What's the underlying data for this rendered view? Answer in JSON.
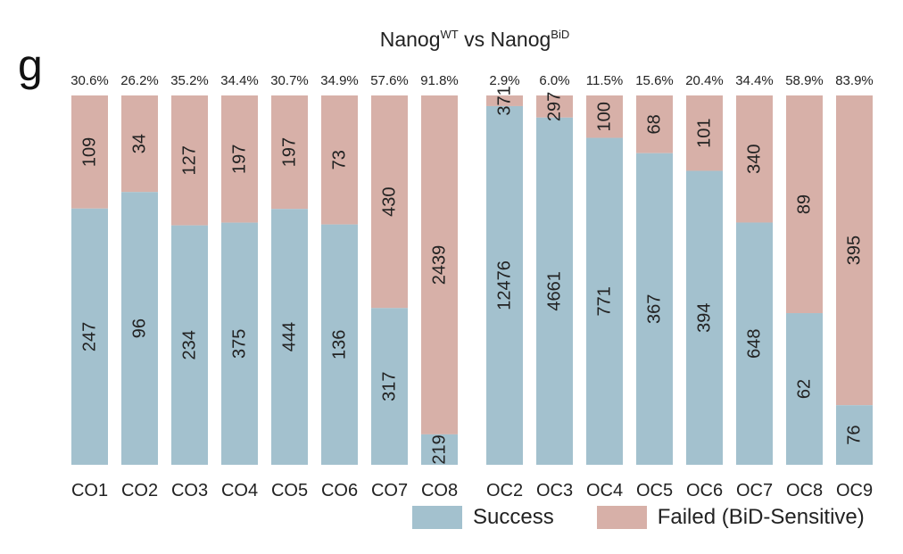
{
  "panel_label": "g",
  "chart_data": {
    "type": "bar",
    "stacked": true,
    "normalized": true,
    "title_parts": {
      "a": "Nanog",
      "a_sup": "WT",
      "mid": " vs ",
      "b": "Nanog",
      "b_sup": "BiD"
    },
    "categories": [
      "CO1",
      "CO2",
      "CO3",
      "CO4",
      "CO5",
      "CO6",
      "CO7",
      "CO8",
      "OC2",
      "OC3",
      "OC4",
      "OC5",
      "OC6",
      "OC7",
      "OC8",
      "OC9"
    ],
    "percent_labels": [
      "30.6%",
      "26.2%",
      "35.2%",
      "34.4%",
      "30.7%",
      "34.9%",
      "57.6%",
      "91.8%",
      "2.9%",
      "6.0%",
      "11.5%",
      "15.6%",
      "20.4%",
      "34.4%",
      "58.9%",
      "83.9%"
    ],
    "series": [
      {
        "name": "Success",
        "color": "#a3c1ce",
        "values": [
          247,
          96,
          234,
          375,
          444,
          136,
          317,
          219,
          12476,
          4661,
          771,
          367,
          394,
          648,
          62,
          76
        ]
      },
      {
        "name": "Failed (BiD-Sensitive)",
        "color": "#d7b0a8",
        "values": [
          109,
          34,
          127,
          197,
          197,
          73,
          430,
          2439,
          371,
          297,
          100,
          68,
          101,
          340,
          89,
          395
        ]
      }
    ],
    "ylim": [
      0,
      1
    ],
    "legend_position": "bottom-right"
  }
}
